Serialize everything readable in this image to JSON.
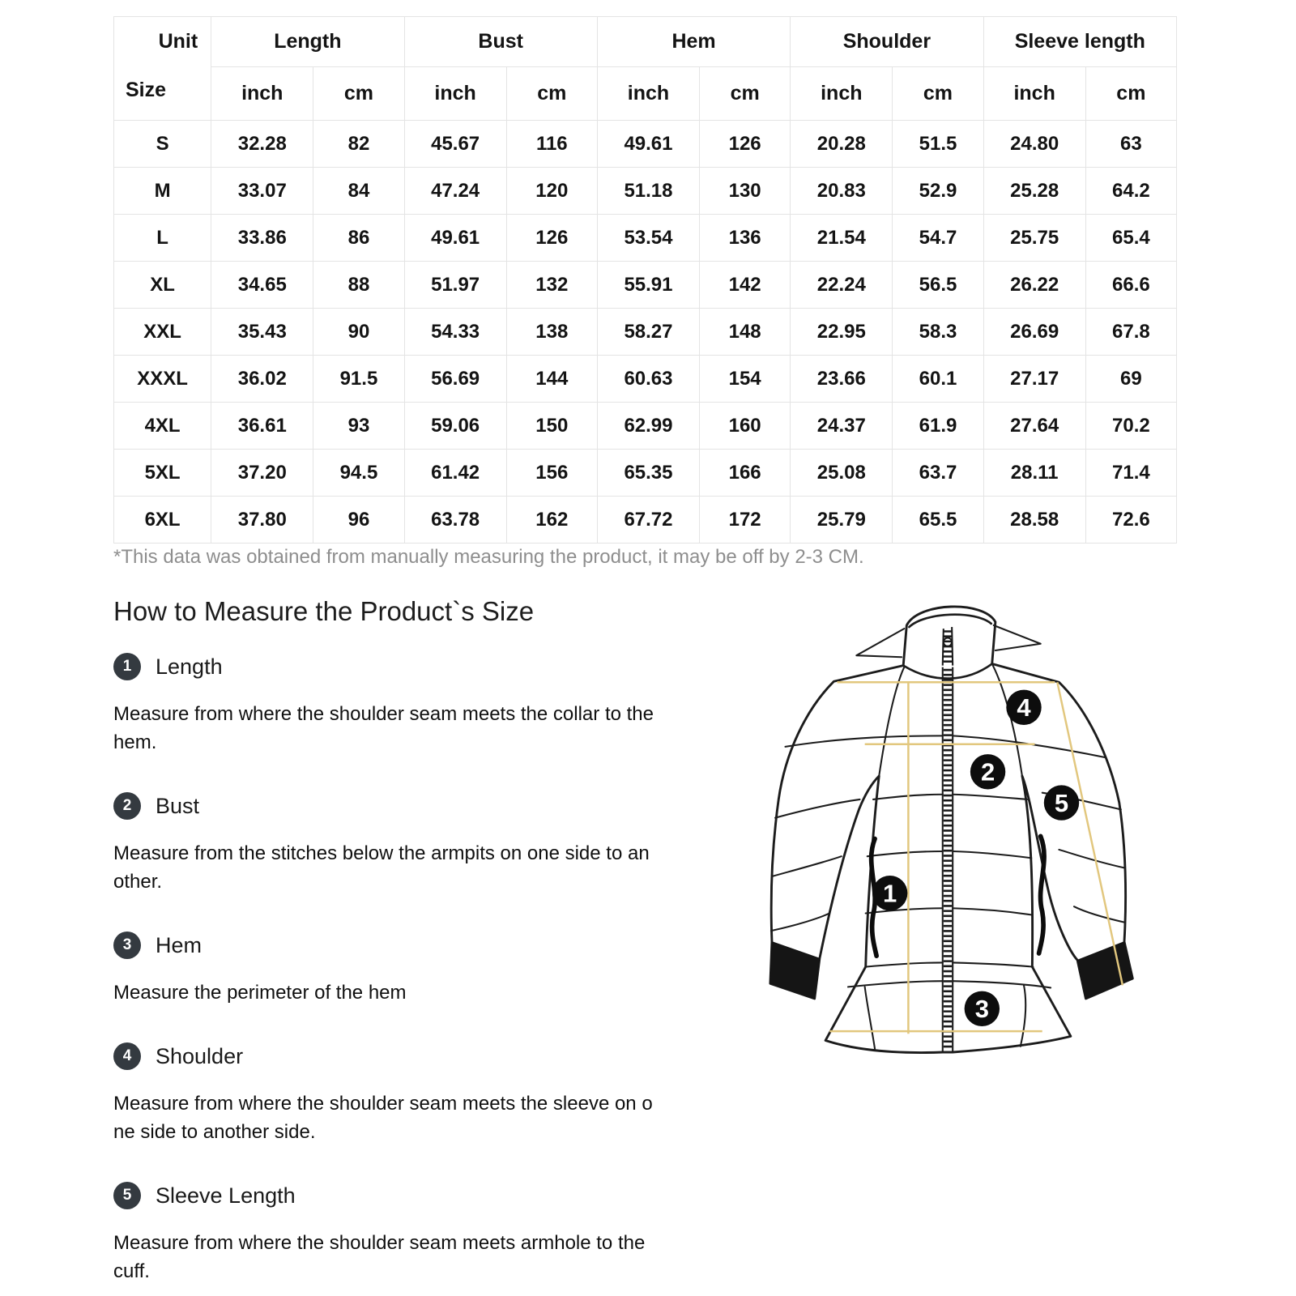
{
  "size_chart": {
    "corner": {
      "top": "Unit",
      "bottom": "Size"
    },
    "groups": [
      {
        "label": "Length"
      },
      {
        "label": "Bust"
      },
      {
        "label": "Hem"
      },
      {
        "label": "Shoulder"
      },
      {
        "label": "Sleeve length"
      }
    ],
    "unit_row": [
      "inch",
      "cm",
      "inch",
      "cm",
      "inch",
      "cm",
      "inch",
      "cm",
      "inch",
      "cm"
    ],
    "rows": [
      {
        "size": "S",
        "values": [
          "32.28",
          "82",
          "45.67",
          "116",
          "49.61",
          "126",
          "20.28",
          "51.5",
          "24.80",
          "63"
        ]
      },
      {
        "size": "M",
        "values": [
          "33.07",
          "84",
          "47.24",
          "120",
          "51.18",
          "130",
          "20.83",
          "52.9",
          "25.28",
          "64.2"
        ]
      },
      {
        "size": "L",
        "values": [
          "33.86",
          "86",
          "49.61",
          "126",
          "53.54",
          "136",
          "21.54",
          "54.7",
          "25.75",
          "65.4"
        ]
      },
      {
        "size": "XL",
        "values": [
          "34.65",
          "88",
          "51.97",
          "132",
          "55.91",
          "142",
          "22.24",
          "56.5",
          "26.22",
          "66.6"
        ]
      },
      {
        "size": "XXL",
        "values": [
          "35.43",
          "90",
          "54.33",
          "138",
          "58.27",
          "148",
          "22.95",
          "58.3",
          "26.69",
          "67.8"
        ]
      },
      {
        "size": "XXXL",
        "values": [
          "36.02",
          "91.5",
          "56.69",
          "144",
          "60.63",
          "154",
          "23.66",
          "60.1",
          "27.17",
          "69"
        ]
      },
      {
        "size": "4XL",
        "values": [
          "36.61",
          "93",
          "59.06",
          "150",
          "62.99",
          "160",
          "24.37",
          "61.9",
          "27.64",
          "70.2"
        ]
      },
      {
        "size": "5XL",
        "values": [
          "37.20",
          "94.5",
          "61.42",
          "156",
          "65.35",
          "166",
          "25.08",
          "63.7",
          "28.11",
          "71.4"
        ]
      },
      {
        "size": "6XL",
        "values": [
          "37.80",
          "96",
          "63.78",
          "162",
          "67.72",
          "172",
          "25.79",
          "65.5",
          "28.58",
          "72.6"
        ]
      }
    ],
    "note": "*This data was obtained from manually measuring the product, it may be off by 2-3 CM."
  },
  "how_to_measure": {
    "title": "How to Measure the Product`s Size",
    "items": [
      {
        "num": "1",
        "label": "Length",
        "description": "Measure from where the shoulder seam meets the collar to the\nhem."
      },
      {
        "num": "2",
        "label": "Bust",
        "description": "Measure from the stitches below the armpits on one side to an\nother."
      },
      {
        "num": "3",
        "label": "Hem",
        "description": "Measure the perimeter of the hem"
      },
      {
        "num": "4",
        "label": "Shoulder",
        "description": "Measure from where the shoulder seam meets the sleeve on o\nne side to another side."
      },
      {
        "num": "5",
        "label": "Sleeve Length",
        "description": "Measure from where the shoulder seam meets armhole to the\ncuff."
      }
    ]
  },
  "diagram": {
    "markers": [
      "1",
      "2",
      "3",
      "4",
      "5"
    ]
  },
  "colors": {
    "table-border": "#e4e4e4",
    "ink": "#141414",
    "note-gray": "#8e8e8e",
    "badge-bg": "#343a40",
    "badge-text": "#ffffff",
    "guide-line": "#e2c77e",
    "drawing-line": "#1c1c1c"
  }
}
